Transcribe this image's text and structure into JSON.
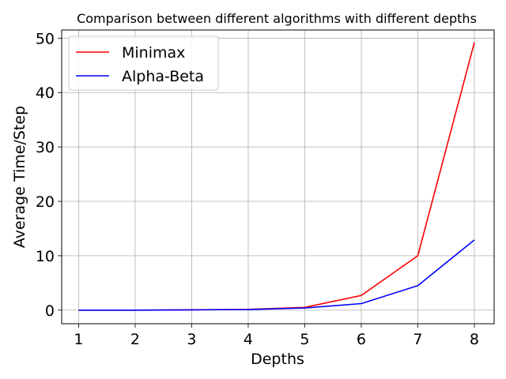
{
  "chart_data": {
    "type": "line",
    "title": "Comparison between different algorithms with different depths",
    "xlabel": "Depths",
    "ylabel": "Average Time/Step",
    "x": [
      1,
      2,
      3,
      4,
      5,
      6,
      7,
      8
    ],
    "xlim": [
      0.7,
      8.35
    ],
    "ylim": [
      -2.5,
      51.5
    ],
    "xticks": [
      1,
      2,
      3,
      4,
      5,
      6,
      7,
      8
    ],
    "yticks": [
      0,
      10,
      20,
      30,
      40,
      50
    ],
    "grid": true,
    "legend_position": "upper-left",
    "series": [
      {
        "name": "Minimax",
        "color": "#ff0000",
        "values": [
          0.0,
          0.0,
          0.05,
          0.15,
          0.5,
          2.7,
          10.0,
          49.2
        ]
      },
      {
        "name": "Alpha-Beta",
        "color": "#0000ff",
        "values": [
          0.0,
          0.0,
          0.05,
          0.1,
          0.4,
          1.2,
          4.5,
          12.9
        ]
      }
    ]
  }
}
